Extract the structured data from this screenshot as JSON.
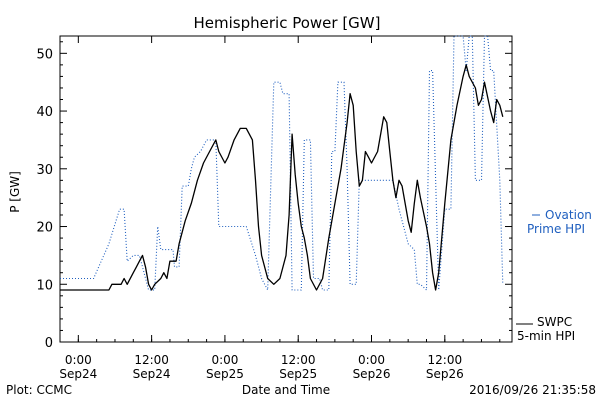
{
  "chart_data": {
    "type": "line",
    "title": "Hemispheric Power [GW]",
    "xlabel": "Date and Time",
    "ylabel": "P [GW]",
    "ylim": [
      0,
      53
    ],
    "yticks": [
      0,
      10,
      20,
      30,
      40,
      50
    ],
    "xlim": [
      "2016-09-23T21:00",
      "2016-09-26T23:00"
    ],
    "xticks": [
      {
        "t": "2016-09-24T00:00",
        "time": "0:00",
        "date": "Sep24"
      },
      {
        "t": "2016-09-24T12:00",
        "time": "12:00",
        "date": "Sep24"
      },
      {
        "t": "2016-09-25T00:00",
        "time": "0:00",
        "date": "Sep25"
      },
      {
        "t": "2016-09-25T12:00",
        "time": "12:00",
        "date": "Sep25"
      },
      {
        "t": "2016-09-26T00:00",
        "time": "0:00",
        "date": "Sep26"
      },
      {
        "t": "2016-09-26T12:00",
        "time": "12:00",
        "date": "Sep26"
      }
    ],
    "grid": false,
    "footer_left": "Plot: CCMC",
    "footer_right": "2016/09/26 21:35:58",
    "series": [
      {
        "name": "Ovation Prime HPI",
        "legend_lines": [
          "Ovation",
          "Prime HPI"
        ],
        "color": "#1f5fbf",
        "style": "dotted",
        "points": [
          [
            "2016-09-23T21:00",
            11
          ],
          [
            "2016-09-24T02:30",
            11
          ],
          [
            "2016-09-24T05:00",
            17
          ],
          [
            "2016-09-24T06:45",
            23
          ],
          [
            "2016-09-24T07:30",
            23
          ],
          [
            "2016-09-24T08:00",
            14
          ],
          [
            "2016-09-24T09:00",
            15
          ],
          [
            "2016-09-24T10:00",
            15
          ],
          [
            "2016-09-24T10:30",
            13
          ],
          [
            "2016-09-24T11:30",
            9
          ],
          [
            "2016-09-24T12:30",
            9
          ],
          [
            "2016-09-24T13:00",
            20
          ],
          [
            "2016-09-24T13:30",
            16
          ],
          [
            "2016-09-24T15:30",
            16
          ],
          [
            "2016-09-24T15:45",
            13
          ],
          [
            "2016-09-24T16:30",
            13
          ],
          [
            "2016-09-24T17:00",
            27
          ],
          [
            "2016-09-24T18:00",
            27
          ],
          [
            "2016-09-24T18:30",
            30
          ],
          [
            "2016-09-24T19:00",
            32
          ],
          [
            "2016-09-24T20:00",
            33
          ],
          [
            "2016-09-24T21:00",
            35
          ],
          [
            "2016-09-24T22:00",
            35
          ],
          [
            "2016-09-24T22:30",
            35
          ],
          [
            "2016-09-24T23:00",
            20
          ],
          [
            "2016-09-25T02:00",
            20
          ],
          [
            "2016-09-25T03:30",
            20
          ],
          [
            "2016-09-25T05:00",
            15
          ],
          [
            "2016-09-25T06:00",
            11
          ],
          [
            "2016-09-25T07:00",
            9
          ],
          [
            "2016-09-25T08:00",
            45
          ],
          [
            "2016-09-25T09:00",
            45
          ],
          [
            "2016-09-25T09:30",
            43
          ],
          [
            "2016-09-25T10:30",
            43
          ],
          [
            "2016-09-25T11:00",
            9
          ],
          [
            "2016-09-25T12:30",
            9
          ],
          [
            "2016-09-25T13:00",
            35
          ],
          [
            "2016-09-25T14:00",
            35
          ],
          [
            "2016-09-25T14:30",
            11
          ],
          [
            "2016-09-25T15:30",
            11
          ],
          [
            "2016-09-25T16:00",
            9
          ],
          [
            "2016-09-25T17:00",
            9
          ],
          [
            "2016-09-25T17:30",
            33
          ],
          [
            "2016-09-25T18:00",
            33
          ],
          [
            "2016-09-25T18:30",
            45
          ],
          [
            "2016-09-25T19:30",
            45
          ],
          [
            "2016-09-25T20:00",
            30
          ],
          [
            "2016-09-25T20:30",
            10
          ],
          [
            "2016-09-25T21:30",
            10
          ],
          [
            "2016-09-25T22:00",
            28
          ],
          [
            "2016-09-26T01:30",
            28
          ],
          [
            "2016-09-26T03:30",
            28
          ],
          [
            "2016-09-26T04:30",
            23
          ],
          [
            "2016-09-26T06:00",
            17
          ],
          [
            "2016-09-26T07:00",
            16
          ],
          [
            "2016-09-26T07:30",
            10
          ],
          [
            "2016-09-26T08:00",
            10
          ],
          [
            "2016-09-26T09:00",
            9
          ],
          [
            "2016-09-26T09:30",
            47
          ],
          [
            "2016-09-26T10:00",
            47
          ],
          [
            "2016-09-26T11:00",
            9
          ],
          [
            "2016-09-26T12:00",
            23
          ],
          [
            "2016-09-26T13:00",
            23
          ],
          [
            "2016-09-26T13:30",
            53
          ],
          [
            "2016-09-26T15:00",
            53
          ],
          [
            "2016-09-26T15:30",
            47
          ],
          [
            "2016-09-26T16:00",
            53
          ],
          [
            "2016-09-26T16:30",
            53
          ],
          [
            "2016-09-26T17:00",
            28
          ],
          [
            "2016-09-26T18:00",
            28
          ],
          [
            "2016-09-26T18:30",
            53
          ],
          [
            "2016-09-26T19:00",
            53
          ],
          [
            "2016-09-26T19:30",
            47
          ],
          [
            "2016-09-26T20:00",
            47
          ],
          [
            "2016-09-26T21:00",
            28
          ],
          [
            "2016-09-26T21:30",
            10
          ]
        ]
      },
      {
        "name": "SWPC 5-min HPI",
        "legend_lines": [
          "SWPC",
          "5-min HPI"
        ],
        "color": "#000000",
        "style": "solid",
        "points": [
          [
            "2016-09-23T21:00",
            9
          ],
          [
            "2016-09-24T05:00",
            9
          ],
          [
            "2016-09-24T05:30",
            10
          ],
          [
            "2016-09-24T07:00",
            10
          ],
          [
            "2016-09-24T07:30",
            11
          ],
          [
            "2016-09-24T08:00",
            10
          ],
          [
            "2016-09-24T09:00",
            12
          ],
          [
            "2016-09-24T09:30",
            13
          ],
          [
            "2016-09-24T10:00",
            14
          ],
          [
            "2016-09-24T10:30",
            15
          ],
          [
            "2016-09-24T11:00",
            13
          ],
          [
            "2016-09-24T11:30",
            10
          ],
          [
            "2016-09-24T12:00",
            9
          ],
          [
            "2016-09-24T12:30",
            10
          ],
          [
            "2016-09-24T13:30",
            11
          ],
          [
            "2016-09-24T14:00",
            12
          ],
          [
            "2016-09-24T14:30",
            11
          ],
          [
            "2016-09-24T15:00",
            14
          ],
          [
            "2016-09-24T16:00",
            14
          ],
          [
            "2016-09-24T16:30",
            17
          ],
          [
            "2016-09-24T17:30",
            21
          ],
          [
            "2016-09-24T18:30",
            24
          ],
          [
            "2016-09-24T19:30",
            28
          ],
          [
            "2016-09-24T20:30",
            31
          ],
          [
            "2016-09-24T21:30",
            33
          ],
          [
            "2016-09-24T22:30",
            35
          ],
          [
            "2016-09-24T23:00",
            33
          ],
          [
            "2016-09-25T00:00",
            31
          ],
          [
            "2016-09-25T00:30",
            32
          ],
          [
            "2016-09-25T01:30",
            35
          ],
          [
            "2016-09-25T02:30",
            37
          ],
          [
            "2016-09-25T03:30",
            37
          ],
          [
            "2016-09-25T04:30",
            35
          ],
          [
            "2016-09-25T05:00",
            28
          ],
          [
            "2016-09-25T05:30",
            20
          ],
          [
            "2016-09-25T06:00",
            15
          ],
          [
            "2016-09-25T07:00",
            11
          ],
          [
            "2016-09-25T08:00",
            10
          ],
          [
            "2016-09-25T09:00",
            11
          ],
          [
            "2016-09-25T10:00",
            15
          ],
          [
            "2016-09-25T10:30",
            22
          ],
          [
            "2016-09-25T11:00",
            36
          ],
          [
            "2016-09-25T11:30",
            29
          ],
          [
            "2016-09-25T12:00",
            24
          ],
          [
            "2016-09-25T12:30",
            20
          ],
          [
            "2016-09-25T13:00",
            18
          ],
          [
            "2016-09-25T13:30",
            15
          ],
          [
            "2016-09-25T14:00",
            11
          ],
          [
            "2016-09-25T15:00",
            9
          ],
          [
            "2016-09-25T16:00",
            11
          ],
          [
            "2016-09-25T17:00",
            18
          ],
          [
            "2016-09-25T18:00",
            24
          ],
          [
            "2016-09-25T19:00",
            30
          ],
          [
            "2016-09-25T20:00",
            38
          ],
          [
            "2016-09-25T20:30",
            43
          ],
          [
            "2016-09-25T21:00",
            41
          ],
          [
            "2016-09-25T21:30",
            33
          ],
          [
            "2016-09-25T22:00",
            27
          ],
          [
            "2016-09-25T22:30",
            28
          ],
          [
            "2016-09-25T23:00",
            33
          ],
          [
            "2016-09-25T23:30",
            32
          ],
          [
            "2016-09-26T00:00",
            31
          ],
          [
            "2016-09-26T01:00",
            33
          ],
          [
            "2016-09-26T02:00",
            39
          ],
          [
            "2016-09-26T02:30",
            38
          ],
          [
            "2016-09-26T03:00",
            33
          ],
          [
            "2016-09-26T03:30",
            28
          ],
          [
            "2016-09-26T04:00",
            25
          ],
          [
            "2016-09-26T04:30",
            28
          ],
          [
            "2016-09-26T05:00",
            27
          ],
          [
            "2016-09-26T06:00",
            21
          ],
          [
            "2016-09-26T06:30",
            19
          ],
          [
            "2016-09-26T07:00",
            24
          ],
          [
            "2016-09-26T07:30",
            28
          ],
          [
            "2016-09-26T08:00",
            25
          ],
          [
            "2016-09-26T09:00",
            20
          ],
          [
            "2016-09-26T09:30",
            17
          ],
          [
            "2016-09-26T10:00",
            12
          ],
          [
            "2016-09-26T10:30",
            9
          ],
          [
            "2016-09-26T11:00",
            12
          ],
          [
            "2016-09-26T12:00",
            24
          ],
          [
            "2016-09-26T13:00",
            35
          ],
          [
            "2016-09-26T14:00",
            41
          ],
          [
            "2016-09-26T15:00",
            46
          ],
          [
            "2016-09-26T15:30",
            48
          ],
          [
            "2016-09-26T16:00",
            46
          ],
          [
            "2016-09-26T17:00",
            44
          ],
          [
            "2016-09-26T17:30",
            41
          ],
          [
            "2016-09-26T18:00",
            42
          ],
          [
            "2016-09-26T18:30",
            45
          ],
          [
            "2016-09-26T19:30",
            40
          ],
          [
            "2016-09-26T20:00",
            38
          ],
          [
            "2016-09-26T20:30",
            42
          ],
          [
            "2016-09-26T21:00",
            41
          ],
          [
            "2016-09-26T21:30",
            39
          ]
        ]
      }
    ]
  }
}
